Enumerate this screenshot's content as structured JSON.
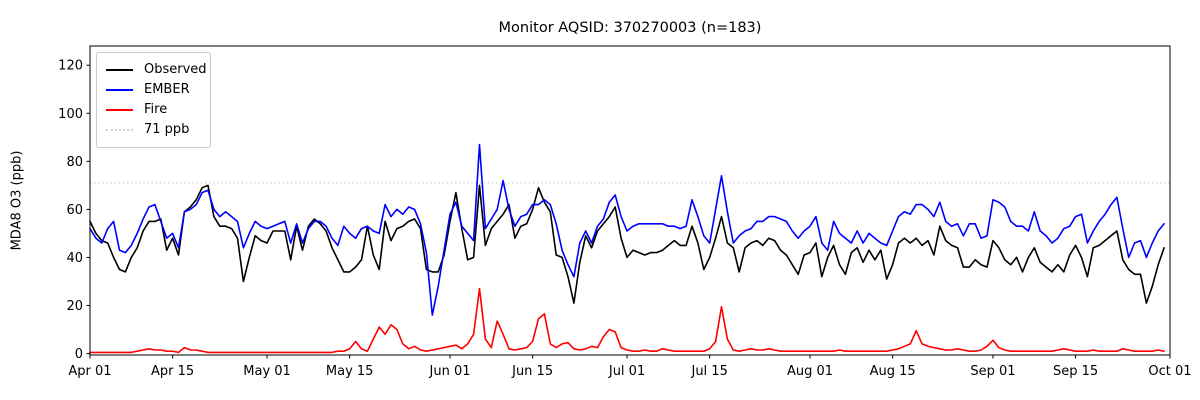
{
  "figure": {
    "background": "#ffffff"
  },
  "chart_data": {
    "type": "line",
    "title": "Monitor AQSID: 370270003 (n=183)",
    "ylabel": "MDA8 O3 (ppb)",
    "xlabel": "",
    "n_points": 183,
    "x_unit": "days since Apr 01",
    "xlim_days": [
      0,
      183
    ],
    "ylim": [
      -0.6,
      128.0
    ],
    "grid": false,
    "legend_position": "upper left",
    "yticks": [
      0,
      20,
      40,
      60,
      80,
      100,
      120
    ],
    "xticks": [
      {
        "day": 0,
        "label": "Apr 01"
      },
      {
        "day": 14,
        "label": "Apr 15"
      },
      {
        "day": 30,
        "label": "May 01"
      },
      {
        "day": 44,
        "label": "May 15"
      },
      {
        "day": 61,
        "label": "Jun 01"
      },
      {
        "day": 75,
        "label": "Jun 15"
      },
      {
        "day": 91,
        "label": "Jul 01"
      },
      {
        "day": 105,
        "label": "Jul 15"
      },
      {
        "day": 122,
        "label": "Aug 01"
      },
      {
        "day": 136,
        "label": "Aug 15"
      },
      {
        "day": 153,
        "label": "Sep 01"
      },
      {
        "day": 167,
        "label": "Sep 15"
      },
      {
        "day": 183,
        "label": "Oct 01"
      }
    ],
    "threshold": {
      "label": "71 ppb",
      "value": 71,
      "color": "#d3d3d3",
      "linestyle": "dotted"
    },
    "series": [
      {
        "name": "Observed",
        "color": "#000000",
        "linestyle": "solid",
        "values": [
          55,
          50,
          47,
          46,
          40,
          35,
          34,
          40,
          44,
          51,
          55,
          55,
          56,
          43,
          48,
          41,
          59,
          61,
          64,
          69,
          70,
          57,
          53,
          53,
          52,
          48,
          30,
          40,
          49,
          47,
          46,
          51,
          51,
          51,
          39,
          53,
          43,
          53,
          56,
          54,
          51,
          44,
          39,
          34,
          34,
          36,
          39,
          53,
          41,
          35,
          55,
          47,
          52,
          53,
          55,
          56,
          52,
          35,
          34,
          34,
          41,
          55,
          67,
          52,
          39,
          40,
          70,
          45,
          52,
          55,
          58,
          62,
          48,
          53,
          54,
          60,
          69,
          63,
          59,
          41,
          40,
          32,
          21,
          38,
          49,
          44,
          51,
          54,
          57,
          61,
          48,
          40,
          43,
          42,
          41,
          42,
          42,
          43,
          45,
          47,
          45,
          45,
          53,
          46,
          35,
          40,
          48,
          57,
          46,
          44,
          34,
          44,
          46,
          47,
          45,
          48,
          47,
          43,
          41,
          37,
          33,
          41,
          42,
          46,
          32,
          40,
          45,
          37,
          33,
          42,
          44,
          38,
          43,
          39,
          43,
          31,
          37,
          46,
          48,
          46,
          48,
          45,
          47,
          41,
          53,
          47,
          45,
          44,
          36,
          36,
          39,
          37,
          36,
          47,
          44,
          39,
          37,
          40,
          34,
          40,
          44,
          38,
          36,
          34,
          37,
          34,
          41,
          45,
          40,
          32,
          44,
          45,
          47,
          49,
          51,
          39,
          35,
          33,
          33,
          21,
          28,
          37,
          44
        ]
      },
      {
        "name": "EMBER",
        "color": "#0000ff",
        "linestyle": "solid",
        "values": [
          52,
          48,
          46,
          52,
          55,
          43,
          42,
          45,
          50,
          56,
          61,
          62,
          55,
          48,
          50,
          44,
          59,
          60,
          62,
          67,
          68,
          60,
          57,
          59,
          57,
          55,
          44,
          50,
          55,
          53,
          52,
          53,
          54,
          55,
          46,
          54,
          46,
          52,
          55,
          55,
          53,
          48,
          45,
          53,
          50,
          48,
          52,
          53,
          51,
          50,
          62,
          57,
          60,
          58,
          61,
          60,
          54,
          42,
          16,
          28,
          43,
          58,
          63,
          53,
          50,
          47,
          87,
          52,
          56,
          60,
          72,
          60,
          53,
          57,
          58,
          62,
          62,
          64,
          62,
          54,
          43,
          37,
          32,
          46,
          51,
          46,
          53,
          56,
          63,
          66,
          57,
          51,
          53,
          54,
          54,
          54,
          54,
          54,
          53,
          53,
          52,
          53,
          64,
          57,
          49,
          46,
          60,
          74,
          59,
          46,
          49,
          51,
          52,
          55,
          55,
          57,
          57,
          56,
          55,
          51,
          48,
          51,
          53,
          57,
          46,
          43,
          55,
          50,
          48,
          46,
          51,
          46,
          50,
          48,
          46,
          45,
          51,
          57,
          59,
          58,
          62,
          62,
          60,
          57,
          63,
          55,
          53,
          54,
          49,
          54,
          54,
          48,
          49,
          64,
          63,
          61,
          55,
          53,
          53,
          51,
          59,
          51,
          49,
          46,
          48,
          52,
          53,
          57,
          58,
          46,
          51,
          55,
          58,
          62,
          65,
          52,
          40,
          46,
          47,
          40,
          46,
          51,
          54
        ]
      },
      {
        "name": "Fire",
        "color": "#ff0000",
        "linestyle": "solid",
        "values": [
          0.5,
          0.5,
          0.5,
          0.5,
          0.5,
          0.5,
          0.5,
          0.5,
          1,
          1.5,
          2,
          1.5,
          1.5,
          1,
          1,
          0.5,
          2.5,
          1.5,
          1.5,
          1,
          0.5,
          0.5,
          0.5,
          0.5,
          0.5,
          0.5,
          0.5,
          0.5,
          0.5,
          0.5,
          0.5,
          0.5,
          0.5,
          0.5,
          0.5,
          0.5,
          0.5,
          0.5,
          0.5,
          0.5,
          0.5,
          0.5,
          1,
          1,
          2,
          5,
          2,
          1,
          6,
          11,
          8,
          12,
          10,
          4,
          2,
          3,
          1.5,
          1,
          1.5,
          2,
          2.5,
          3,
          3.5,
          2,
          4,
          8,
          27,
          6,
          2.5,
          13.5,
          8,
          2,
          1.5,
          2,
          2.5,
          5,
          14.5,
          16.5,
          4,
          2.5,
          4,
          4.5,
          2,
          1.5,
          2,
          3,
          2.5,
          7,
          10,
          9,
          2.5,
          1.5,
          1,
          1,
          1.5,
          1,
          1,
          2,
          1.5,
          1,
          1,
          1,
          1,
          1,
          1,
          2,
          5,
          19.5,
          6,
          1.5,
          1,
          1.5,
          2,
          1.5,
          1.5,
          2,
          1.5,
          1,
          1,
          1,
          1,
          1,
          1,
          1,
          1,
          1,
          1,
          1.5,
          1,
          1,
          1,
          1,
          1,
          1,
          1,
          1,
          1.5,
          2,
          3,
          4,
          9.5,
          4,
          3,
          2.5,
          2,
          1.5,
          1.5,
          2,
          1.5,
          1,
          1,
          1.5,
          3,
          5.5,
          2.5,
          1.5,
          1,
          1,
          1,
          1,
          1,
          1,
          1,
          1,
          1.5,
          2,
          1.5,
          1,
          1,
          1,
          1.5,
          1,
          1,
          1,
          1,
          2,
          1.5,
          1,
          1,
          1,
          1,
          1.5,
          1
        ]
      }
    ]
  },
  "legend": {
    "items": [
      {
        "label": "Observed",
        "color": "#000000",
        "style": "solid"
      },
      {
        "label": "EMBER",
        "color": "#0000ff",
        "style": "solid"
      },
      {
        "label": "Fire",
        "color": "#ff0000",
        "style": "solid"
      },
      {
        "label": "71 ppb",
        "color": "#d3d3d3",
        "style": "dotted"
      }
    ]
  }
}
